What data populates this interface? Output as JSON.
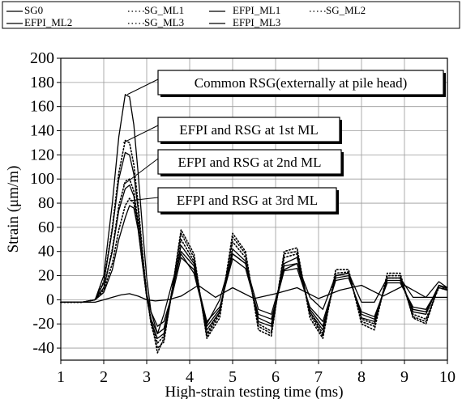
{
  "chart_data": {
    "type": "line",
    "title": "",
    "xlabel": "High-strain testing time (ms)",
    "ylabel": "Strain (μm/m)",
    "xlim": [
      1,
      10
    ],
    "ylim": [
      -50,
      200
    ],
    "x_ticks": [
      1,
      2,
      3,
      4,
      5,
      6,
      7,
      8,
      9,
      10
    ],
    "y_ticks": [
      -40,
      -20,
      0,
      20,
      40,
      60,
      80,
      100,
      120,
      140,
      160,
      180,
      200
    ],
    "grid": true,
    "legend_position": "top",
    "legend": [
      "SG0",
      "SG_ML1",
      "EFPI_ML1",
      "SG_ML2",
      "EFPI_ML2",
      "SG_ML3",
      "EFPI_ML3"
    ],
    "annotations": [
      "Common RSG(externally at pile head)",
      "EFPI and RSG at 1st ML",
      "EFPI and RSG at 2nd ML",
      "EFPI and RSG at 3rd ML"
    ],
    "series": [
      {
        "name": "SG0",
        "style": "solid",
        "color": "#000000",
        "x": [
          1.0,
          1.5,
          1.8,
          2.0,
          2.2,
          2.35,
          2.5,
          2.6,
          2.7,
          2.8,
          2.9,
          3.0,
          3.1,
          3.25,
          3.4,
          3.6,
          3.8,
          4.1,
          4.4,
          4.7,
          5.0,
          5.3,
          5.6,
          5.9,
          6.2,
          6.5,
          6.8,
          7.1,
          7.4,
          7.7,
          8.0,
          8.3,
          8.6,
          8.9,
          9.2,
          9.5,
          9.8,
          10.0
        ],
        "y": [
          -2,
          -2,
          0,
          20,
          80,
          135,
          170,
          168,
          145,
          105,
          60,
          18,
          -10,
          -28,
          -12,
          15,
          38,
          22,
          -20,
          0,
          38,
          30,
          -8,
          -12,
          25,
          30,
          2,
          -8,
          20,
          22,
          -2,
          -2,
          18,
          18,
          2,
          2,
          15,
          10
        ]
      },
      {
        "name": "SG_ML1",
        "style": "dotted",
        "color": "#000000",
        "x": [
          1.0,
          1.5,
          1.8,
          2.0,
          2.2,
          2.35,
          2.5,
          2.6,
          2.7,
          2.8,
          2.9,
          3.0,
          3.1,
          3.25,
          3.4,
          3.6,
          3.8,
          4.1,
          4.4,
          4.7,
          5.0,
          5.3,
          5.6,
          5.9,
          6.2,
          6.5,
          6.8,
          7.1,
          7.4,
          7.7,
          8.0,
          8.3,
          8.6,
          8.9,
          9.2,
          9.5,
          9.8,
          10.0
        ],
        "y": [
          -2,
          -2,
          0,
          15,
          60,
          105,
          132,
          130,
          112,
          80,
          40,
          5,
          -20,
          -40,
          -35,
          10,
          58,
          38,
          -32,
          -15,
          55,
          40,
          -25,
          -30,
          40,
          43,
          -15,
          -32,
          25,
          25,
          -20,
          -25,
          22,
          22,
          -15,
          -20,
          12,
          8
        ]
      },
      {
        "name": "EFPI_ML1",
        "style": "solid",
        "color": "#000000",
        "x": [
          1.0,
          1.5,
          1.8,
          2.0,
          2.2,
          2.35,
          2.5,
          2.6,
          2.7,
          2.8,
          2.9,
          3.0,
          3.1,
          3.25,
          3.4,
          3.6,
          3.8,
          4.1,
          4.4,
          4.7,
          5.0,
          5.3,
          5.6,
          5.9,
          6.2,
          6.5,
          6.8,
          7.1,
          7.4,
          7.7,
          8.0,
          8.3,
          8.6,
          8.9,
          9.2,
          9.5,
          9.8,
          10.0
        ],
        "y": [
          -2,
          -2,
          0,
          14,
          58,
          100,
          122,
          120,
          104,
          75,
          38,
          5,
          -18,
          -32,
          -28,
          8,
          45,
          30,
          -25,
          -10,
          42,
          32,
          -18,
          -22,
          30,
          35,
          -10,
          -25,
          20,
          22,
          -15,
          -18,
          18,
          18,
          -10,
          -12,
          12,
          10
        ]
      },
      {
        "name": "SG_ML2",
        "style": "dotted",
        "color": "#000000",
        "x": [
          1.0,
          1.5,
          1.8,
          2.0,
          2.2,
          2.35,
          2.5,
          2.6,
          2.7,
          2.8,
          2.9,
          3.0,
          3.1,
          3.25,
          3.4,
          3.6,
          3.8,
          4.1,
          4.4,
          4.7,
          5.0,
          5.3,
          5.6,
          5.9,
          6.2,
          6.5,
          6.8,
          7.1,
          7.4,
          7.7,
          8.0,
          8.3,
          8.6,
          8.9,
          9.2,
          9.5,
          9.8,
          10.0
        ],
        "y": [
          -2,
          -2,
          0,
          10,
          42,
          78,
          98,
          100,
          90,
          65,
          32,
          3,
          -18,
          -36,
          -30,
          10,
          55,
          35,
          -30,
          -12,
          52,
          38,
          -22,
          -28,
          38,
          40,
          -12,
          -30,
          22,
          23,
          -18,
          -22,
          20,
          20,
          -14,
          -18,
          12,
          9
        ]
      },
      {
        "name": "EFPI_ML2",
        "style": "solid",
        "color": "#000000",
        "x": [
          1.0,
          1.5,
          1.8,
          2.0,
          2.2,
          2.35,
          2.5,
          2.6,
          2.7,
          2.8,
          2.9,
          3.0,
          3.1,
          3.25,
          3.4,
          3.6,
          3.8,
          4.1,
          4.4,
          4.7,
          5.0,
          5.3,
          5.6,
          5.9,
          6.2,
          6.5,
          6.8,
          7.1,
          7.4,
          7.7,
          8.0,
          8.3,
          8.6,
          8.9,
          9.2,
          9.5,
          9.8,
          10.0
        ],
        "y": [
          -2,
          -2,
          0,
          10,
          40,
          74,
          92,
          95,
          86,
          62,
          30,
          2,
          -16,
          -28,
          -24,
          8,
          40,
          28,
          -22,
          -8,
          38,
          30,
          -15,
          -20,
          28,
          30,
          -8,
          -22,
          18,
          20,
          -12,
          -16,
          16,
          16,
          -8,
          -10,
          12,
          10
        ]
      },
      {
        "name": "SG_ML3",
        "style": "dotted",
        "color": "#000000",
        "x": [
          1.0,
          1.5,
          1.8,
          2.0,
          2.2,
          2.35,
          2.5,
          2.6,
          2.7,
          2.8,
          2.9,
          3.0,
          3.1,
          3.25,
          3.4,
          3.6,
          3.8,
          4.1,
          4.4,
          4.7,
          5.0,
          5.3,
          5.6,
          5.9,
          6.2,
          6.5,
          6.8,
          7.1,
          7.4,
          7.7,
          8.0,
          8.3,
          8.6,
          8.9,
          9.2,
          9.5,
          9.8,
          10.0
        ],
        "y": [
          -2,
          -2,
          0,
          8,
          30,
          58,
          78,
          84,
          80,
          60,
          30,
          2,
          -16,
          -44,
          -32,
          8,
          50,
          32,
          -28,
          -10,
          48,
          35,
          -20,
          -26,
          35,
          38,
          -10,
          -28,
          20,
          22,
          -16,
          -20,
          18,
          18,
          -12,
          -16,
          10,
          8
        ]
      },
      {
        "name": "EFPI_ML3",
        "style": "solid",
        "color": "#000000",
        "x": [
          1.0,
          1.5,
          1.8,
          2.0,
          2.2,
          2.35,
          2.5,
          2.6,
          2.7,
          2.8,
          2.9,
          3.0,
          3.1,
          3.25,
          3.4,
          3.6,
          3.8,
          4.1,
          4.4,
          4.7,
          5.0,
          5.3,
          5.6,
          5.9,
          6.2,
          6.5,
          6.8,
          7.1,
          7.4,
          7.7,
          8.0,
          8.3,
          8.6,
          8.9,
          9.2,
          9.5,
          9.8,
          10.0
        ],
        "y": [
          -2,
          -2,
          0,
          6,
          25,
          50,
          68,
          78,
          76,
          58,
          30,
          5,
          -10,
          -22,
          -18,
          5,
          35,
          25,
          -18,
          -6,
          34,
          26,
          -12,
          -16,
          24,
          26,
          -6,
          -18,
          16,
          18,
          -10,
          -14,
          14,
          14,
          -6,
          -8,
          10,
          8
        ]
      },
      {
        "name": "",
        "style": "solid",
        "color": "#000000",
        "x": [
          1.0,
          1.8,
          2.0,
          2.2,
          2.4,
          2.6,
          2.8,
          3.0,
          3.2,
          3.5,
          3.8,
          4.2,
          4.6,
          5.0,
          5.5,
          6.0,
          6.5,
          7.0,
          7.5,
          8.0,
          8.5,
          9.0,
          9.5,
          10.0
        ],
        "y": [
          -2,
          -2,
          0,
          2,
          4,
          5,
          3,
          0,
          -1,
          0,
          3,
          12,
          2,
          10,
          1,
          5,
          10,
          1,
          8,
          12,
          3,
          12,
          2,
          2
        ]
      }
    ]
  }
}
